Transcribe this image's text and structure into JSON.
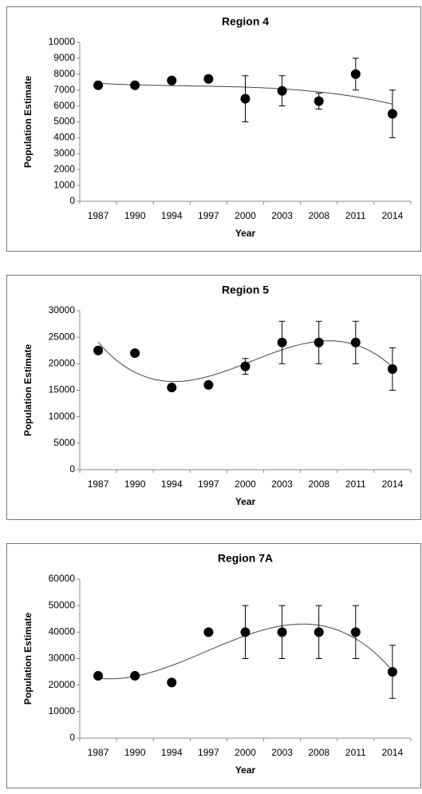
{
  "chart_data": [
    {
      "type": "scatter",
      "title": "Region 4",
      "x_label": "Year",
      "y_label": "Population Estimate",
      "categories": [
        "1987",
        "1990",
        "1994",
        "1997",
        "2000",
        "2003",
        "2008",
        "2011",
        "2014"
      ],
      "values": [
        7300,
        7300,
        7600,
        7700,
        6450,
        6950,
        6300,
        8000,
        5500
      ],
      "errors": [
        null,
        null,
        null,
        null,
        1450,
        950,
        500,
        1000,
        1500
      ],
      "color": "#000000",
      "trendline": "polynomial",
      "ylim": [
        0,
        10000
      ],
      "yticks": [
        0,
        1000,
        2000,
        3000,
        4000,
        5000,
        6000,
        7000,
        8000,
        9000,
        10000
      ]
    },
    {
      "type": "scatter",
      "title": "Region 5",
      "x_label": "Year",
      "y_label": "Population Estimate",
      "categories": [
        "1987",
        "1990",
        "1994",
        "1997",
        "2000",
        "2003",
        "2008",
        "2011",
        "2014"
      ],
      "values": [
        22500,
        22000,
        15500,
        16000,
        19500,
        24000,
        24000,
        24000,
        19000
      ],
      "errors": [
        null,
        null,
        null,
        null,
        1500,
        4000,
        4000,
        4000,
        4000
      ],
      "color": "#000000",
      "trendline": "polynomial",
      "ylim": [
        0,
        30000
      ],
      "yticks": [
        0,
        5000,
        10000,
        15000,
        20000,
        25000,
        30000
      ]
    },
    {
      "type": "scatter",
      "title": "Region 7A",
      "x_label": "Year",
      "y_label": "Population Estimate",
      "categories": [
        "1987",
        "1990",
        "1994",
        "1997",
        "2000",
        "2003",
        "2008",
        "2011",
        "2014"
      ],
      "values": [
        23500,
        23500,
        21000,
        40000,
        40000,
        40000,
        40000,
        40000,
        25000
      ],
      "errors": [
        null,
        null,
        null,
        null,
        10000,
        10000,
        10000,
        10000,
        10000
      ],
      "color": "#000000",
      "trendline": "polynomial",
      "ylim": [
        0,
        60000
      ],
      "yticks": [
        0,
        10000,
        20000,
        30000,
        40000,
        50000,
        60000
      ]
    }
  ]
}
